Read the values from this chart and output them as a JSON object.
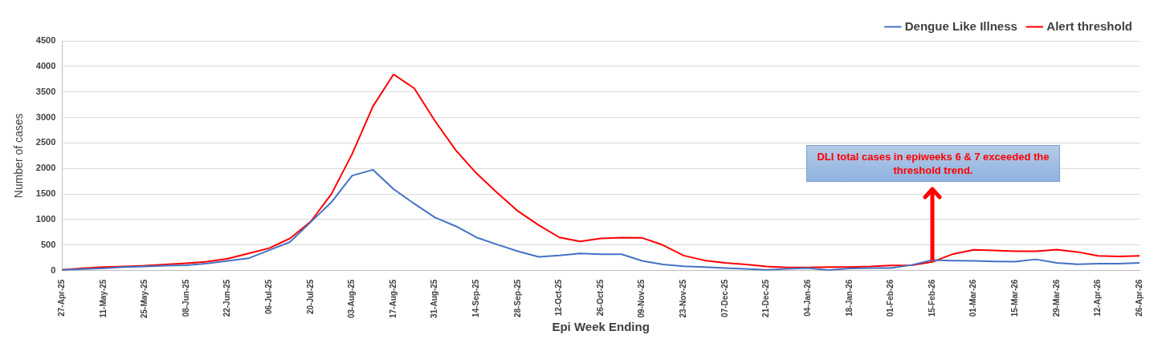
{
  "chart_data": {
    "type": "line",
    "xlabel": "Epi Week Ending",
    "ylabel": "Number of cases",
    "categories": [
      "27-Apr-25",
      null,
      "11-May-25",
      null,
      "25-May-25",
      null,
      "08-Jun-25",
      null,
      "22-Jun-25",
      null,
      "06-Jul-25",
      null,
      "20-Jul-25",
      null,
      "03-Aug-25",
      null,
      "17-Aug-25",
      null,
      "31-Aug-25",
      null,
      "14-Sep-25",
      null,
      "28-Sep-25",
      null,
      "12-Oct-25",
      null,
      "26-Oct-25",
      null,
      "09-Nov-25",
      null,
      "23-Nov-25",
      null,
      "07-Dec-25",
      null,
      "21-Dec-25",
      null,
      "04-Jan-26",
      null,
      "18-Jan-26",
      null,
      "01-Feb-26",
      null,
      "15-Feb-26",
      null,
      "01-Mar-26",
      null,
      "15-Mar-26",
      null,
      "29-Mar-26",
      null,
      "12-Apr-26",
      null,
      "26-Apr-26"
    ],
    "series": [
      {
        "name": "Dengue Like Illness",
        "color": "#4472c4",
        "values": [
          15,
          30,
          45,
          70,
          80,
          95,
          105,
          140,
          190,
          240,
          400,
          560,
          950,
          1340,
          1860,
          1975,
          1595,
          1310,
          1040,
          870,
          650,
          510,
          380,
          270,
          295,
          335,
          320,
          320,
          190,
          120,
          85,
          70,
          50,
          35,
          15,
          33,
          48,
          10,
          43,
          48,
          48,
          110,
          205,
          195,
          190,
          180,
          175,
          220,
          150,
          125,
          135,
          135,
          150
        ]
      },
      {
        "name": "Alert threshold",
        "color": "#ff0000",
        "values": [
          15,
          45,
          70,
          80,
          95,
          120,
          145,
          175,
          235,
          335,
          440,
          630,
          960,
          1500,
          2285,
          3215,
          3845,
          3570,
          2930,
          2360,
          1905,
          1525,
          1165,
          890,
          650,
          570,
          630,
          645,
          640,
          500,
          295,
          200,
          150,
          120,
          80,
          62,
          62,
          70,
          70,
          80,
          100,
          105,
          170,
          325,
          405,
          395,
          380,
          380,
          410,
          365,
          290,
          275,
          290
        ]
      }
    ],
    "ylim": [
      0,
      4500
    ],
    "yticks": [
      0,
      500,
      1000,
      1500,
      2000,
      2500,
      3000,
      3500,
      4000,
      4500
    ],
    "grid": "y",
    "legend": "top right",
    "marker": "none",
    "line_style": "solid",
    "annotations": [
      {
        "text": "DLI total cases in epiweeks 6 & 7 exceeded the threshold trend.",
        "x": "15-Feb-26",
        "y": 200
      }
    ]
  }
}
